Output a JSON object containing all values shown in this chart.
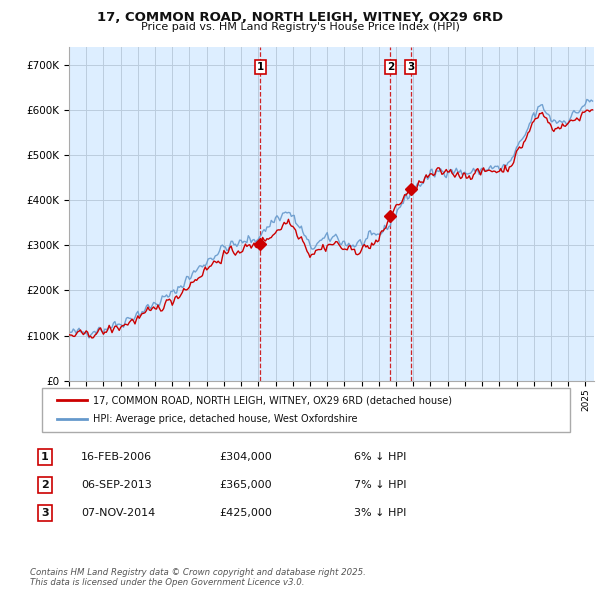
{
  "title": "17, COMMON ROAD, NORTH LEIGH, WITNEY, OX29 6RD",
  "subtitle": "Price paid vs. HM Land Registry's House Price Index (HPI)",
  "ylabel_ticks": [
    "£0",
    "£100K",
    "£200K",
    "£300K",
    "£400K",
    "£500K",
    "£600K",
    "£700K"
  ],
  "ytick_values": [
    0,
    100000,
    200000,
    300000,
    400000,
    500000,
    600000,
    700000
  ],
  "ylim": [
    0,
    740000
  ],
  "red_color": "#cc0000",
  "blue_color": "#6699cc",
  "grid_color": "#cccccc",
  "bg_color": "#ddeeff",
  "plot_bg": "#ddeeff",
  "legend_line1": "17, COMMON ROAD, NORTH LEIGH, WITNEY, OX29 6RD (detached house)",
  "legend_line2": "HPI: Average price, detached house, West Oxfordshire",
  "sales": [
    {
      "label": "1",
      "date": "16-FEB-2006",
      "price": 304000,
      "pct": "6%",
      "x": 2006.12
    },
    {
      "label": "2",
      "date": "06-SEP-2013",
      "price": 365000,
      "pct": "7%",
      "x": 2013.67
    },
    {
      "label": "3",
      "date": "07-NOV-2014",
      "price": 425000,
      "pct": "3%",
      "x": 2014.85
    }
  ],
  "table_rows": [
    {
      "num": "1",
      "date": "16-FEB-2006",
      "price": "£304,000",
      "pct": "6% ↓ HPI"
    },
    {
      "num": "2",
      "date": "06-SEP-2013",
      "price": "£365,000",
      "pct": "7% ↓ HPI"
    },
    {
      "num": "3",
      "date": "07-NOV-2014",
      "price": "£425,000",
      "pct": "3% ↓ HPI"
    }
  ],
  "footer": "Contains HM Land Registry data © Crown copyright and database right 2025.\nThis data is licensed under the Open Government Licence v3.0.",
  "xlim_start": 1995.0,
  "xlim_end": 2025.5
}
